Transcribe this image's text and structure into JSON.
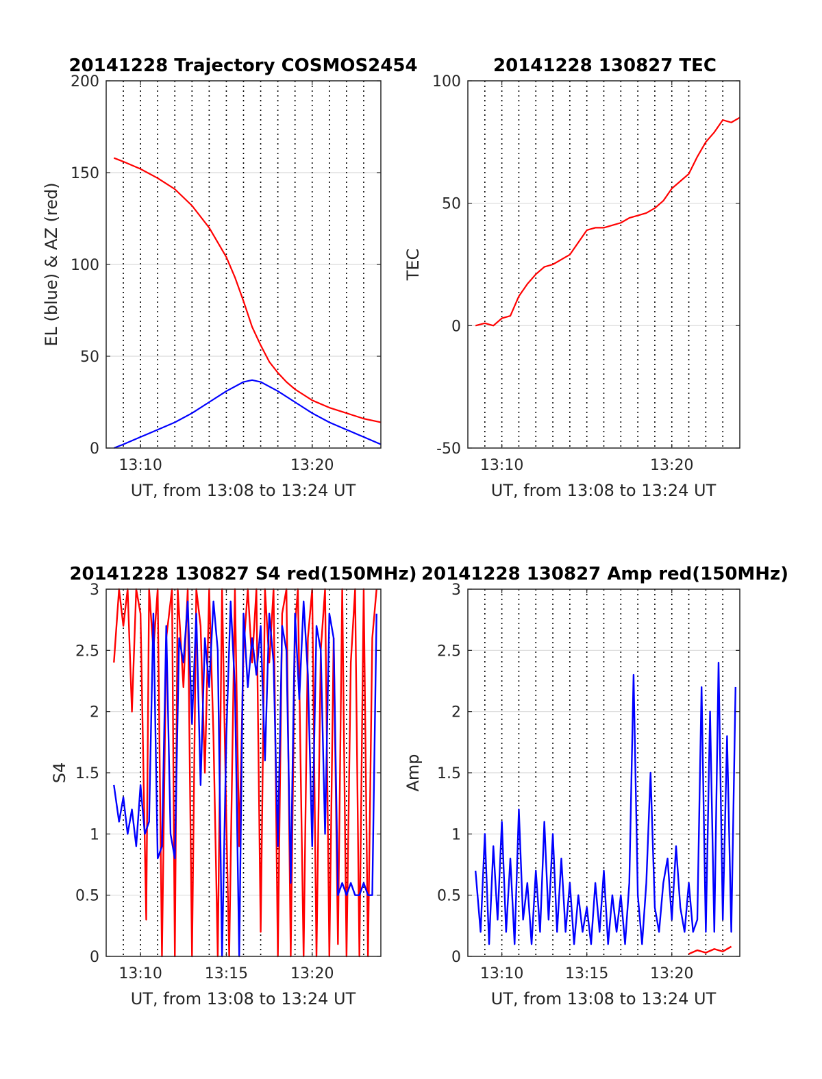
{
  "figure": {
    "colors": {
      "elevation": "#0000ff",
      "azimuth": "#ff0000",
      "red_channel": "#ff0000",
      "blue_channel": "#0000ff",
      "grid": "#d9d9d9",
      "dotted_marker": "#000000"
    }
  },
  "chart_data": [
    {
      "id": "trajectory",
      "type": "line",
      "title": "20141228 Trajectory COSMOS2454",
      "xlabel": "UT, from 13:08 to 13:24 UT",
      "ylabel": "EL (blue) & AZ (red)",
      "xlim": [
        "13:08:00",
        "13:24:00"
      ],
      "ylim": [
        0,
        200
      ],
      "yticks": [
        0,
        50,
        100,
        150,
        200
      ],
      "xticks": [
        "13:10",
        "13:20"
      ],
      "grid": "horizontal",
      "vertical_dotted_lines": [
        "13:09:00",
        "13:10:00",
        "13:11:00",
        "13:12:00",
        "13:13:00",
        "13:14:00",
        "13:15:00",
        "13:16:00",
        "13:17:00",
        "13:18:00",
        "13:19:00",
        "13:20:00",
        "13:21:00",
        "13:22:00",
        "13:23:00"
      ],
      "series": [
        {
          "color": "#ff0000",
          "x": [
            "13:08:27",
            "13:09:00",
            "13:10:00",
            "13:11:00",
            "13:12:00",
            "13:13:00",
            "13:14:00",
            "13:15:00",
            "13:15:30",
            "13:16:00",
            "13:16:30",
            "13:17:00",
            "13:17:30",
            "13:18:00",
            "13:18:30",
            "13:19:00",
            "13:20:00",
            "13:21:00",
            "13:22:00",
            "13:23:00",
            "13:24:00"
          ],
          "values": [
            158,
            156,
            152,
            147,
            141,
            132,
            120,
            104,
            93,
            80,
            66,
            56,
            47,
            41,
            36,
            32,
            26,
            22,
            19,
            16,
            14
          ]
        },
        {
          "color": "#0000ff",
          "x": [
            "13:08:27",
            "13:09:00",
            "13:10:00",
            "13:11:00",
            "13:12:00",
            "13:13:00",
            "13:14:00",
            "13:15:00",
            "13:16:00",
            "13:16:30",
            "13:17:00",
            "13:18:00",
            "13:19:00",
            "13:20:00",
            "13:21:00",
            "13:22:00",
            "13:23:00",
            "13:24:00"
          ],
          "values": [
            0,
            2,
            6,
            10,
            14,
            19,
            25,
            31,
            36,
            37,
            36,
            31,
            25,
            19,
            14,
            10,
            6,
            2
          ]
        }
      ]
    },
    {
      "id": "tec",
      "type": "line",
      "title": "20141228 130827 TEC",
      "xlabel": "UT, from 13:08 to 13:24 UT",
      "ylabel": "TEC",
      "xlim": [
        "13:08:00",
        "13:24:00"
      ],
      "ylim": [
        -50,
        100
      ],
      "yticks": [
        -50,
        0,
        50,
        100
      ],
      "xticks": [
        "13:10",
        "13:20"
      ],
      "grid": "horizontal",
      "vertical_dotted_lines": [
        "13:09:00",
        "13:10:00",
        "13:11:00",
        "13:12:00",
        "13:13:00",
        "13:14:00",
        "13:15:00",
        "13:16:00",
        "13:17:00",
        "13:18:00",
        "13:19:00",
        "13:20:00",
        "13:21:00",
        "13:22:00",
        "13:23:00"
      ],
      "series": [
        {
          "color": "#ff0000",
          "x": [
            "13:08:27",
            "13:09:00",
            "13:09:30",
            "13:10:00",
            "13:10:30",
            "13:11:00",
            "13:11:30",
            "13:12:00",
            "13:12:30",
            "13:13:00",
            "13:13:30",
            "13:14:00",
            "13:14:30",
            "13:15:00",
            "13:15:30",
            "13:16:00",
            "13:16:30",
            "13:17:00",
            "13:17:30",
            "13:18:00",
            "13:18:30",
            "13:19:00",
            "13:19:30",
            "13:20:00",
            "13:20:30",
            "13:21:00",
            "13:21:30",
            "13:22:00",
            "13:22:30",
            "13:23:00",
            "13:23:30",
            "13:24:00"
          ],
          "values": [
            0,
            1,
            0,
            3,
            4,
            12,
            17,
            21,
            24,
            25,
            27,
            29,
            34,
            39,
            40,
            40,
            41,
            42,
            44,
            45,
            46,
            48,
            51,
            56,
            59,
            62,
            69,
            75,
            79,
            84,
            83,
            85
          ]
        }
      ]
    },
    {
      "id": "s4",
      "type": "line",
      "title": "20141228 130827 S4 red(150MHz)",
      "xlabel": "UT, from 13:08 to 13:24 UT",
      "ylabel": "S4",
      "xlim": [
        "13:08:00",
        "13:24:00"
      ],
      "ylim": [
        0,
        3
      ],
      "yticks": [
        0,
        0.5,
        1,
        1.5,
        2,
        2.5,
        3
      ],
      "xticks": [
        "13:10",
        "13:15",
        "13:20"
      ],
      "grid": "horizontal",
      "vertical_dotted_lines": [
        "13:09:00",
        "13:10:00",
        "13:11:00",
        "13:12:00",
        "13:13:00",
        "13:14:00",
        "13:15:00",
        "13:16:00",
        "13:17:00",
        "13:18:00",
        "13:19:00",
        "13:20:00",
        "13:21:00",
        "13:22:00",
        "13:23:00"
      ],
      "series": [
        {
          "color": "#ff0000",
          "x": [
            "13:08:27",
            "13:08:45",
            "13:09:00",
            "13:09:15",
            "13:09:30",
            "13:09:45",
            "13:10:00",
            "13:10:20",
            "13:10:30",
            "13:10:45",
            "13:11:00",
            "13:11:15",
            "13:11:30",
            "13:11:50",
            "13:12:00",
            "13:12:10",
            "13:12:30",
            "13:12:45",
            "13:13:00",
            "13:13:15",
            "13:13:30",
            "13:13:45",
            "13:14:00",
            "13:14:15",
            "13:14:30",
            "13:14:45",
            "13:15:00",
            "13:15:10",
            "13:15:30",
            "13:15:45",
            "13:16:00",
            "13:16:15",
            "13:16:30",
            "13:16:45",
            "13:17:00",
            "13:17:15",
            "13:17:30",
            "13:17:45",
            "13:18:00",
            "13:18:15",
            "13:18:30",
            "13:18:45",
            "13:19:00",
            "13:19:10",
            "13:19:30",
            "13:19:45",
            "13:20:00",
            "13:20:15",
            "13:20:30",
            "13:20:45",
            "13:21:00",
            "13:21:15",
            "13:21:30",
            "13:21:45",
            "13:22:00",
            "13:22:15",
            "13:22:30",
            "13:22:45",
            "13:23:00",
            "13:23:15",
            "13:23:30",
            "13:23:45"
          ],
          "values": [
            2.4,
            3.0,
            2.7,
            3.0,
            2.0,
            3.0,
            2.8,
            0.3,
            3.0,
            2.5,
            3.0,
            0.0,
            2.6,
            3.0,
            0.0,
            3.0,
            2.2,
            3.0,
            0.0,
            3.0,
            2.7,
            1.5,
            3.0,
            1.8,
            0.0,
            3.0,
            1.1,
            0.0,
            3.0,
            0.9,
            2.5,
            3.0,
            2.4,
            3.0,
            0.2,
            3.0,
            2.4,
            3.0,
            0.0,
            2.8,
            3.0,
            0.0,
            2.7,
            3.0,
            0.0,
            2.6,
            3.0,
            0.0,
            2.5,
            3.0,
            0.0,
            2.6,
            0.1,
            3.0,
            0.0,
            2.4,
            3.0,
            0.0,
            3.0,
            0.0,
            2.6,
            3.0
          ]
        },
        {
          "color": "#0000ff",
          "x": [
            "13:08:27",
            "13:08:45",
            "13:09:00",
            "13:09:15",
            "13:09:30",
            "13:09:45",
            "13:10:00",
            "13:10:15",
            "13:10:30",
            "13:10:45",
            "13:11:00",
            "13:11:15",
            "13:11:30",
            "13:11:45",
            "13:12:00",
            "13:12:15",
            "13:12:30",
            "13:12:45",
            "13:13:00",
            "13:13:15",
            "13:13:30",
            "13:13:45",
            "13:14:00",
            "13:14:15",
            "13:14:30",
            "13:14:45",
            "13:15:00",
            "13:15:15",
            "13:15:30",
            "13:15:45",
            "13:16:00",
            "13:16:15",
            "13:16:30",
            "13:16:45",
            "13:17:00",
            "13:17:15",
            "13:17:30",
            "13:17:45",
            "13:18:00",
            "13:18:15",
            "13:18:30",
            "13:18:45",
            "13:19:00",
            "13:19:15",
            "13:19:30",
            "13:19:45",
            "13:20:00",
            "13:20:15",
            "13:20:30",
            "13:20:45",
            "13:21:00",
            "13:21:15",
            "13:21:30",
            "13:21:45",
            "13:22:00",
            "13:22:15",
            "13:22:30",
            "13:22:45",
            "13:23:00",
            "13:23:15",
            "13:23:30",
            "13:23:45"
          ],
          "values": [
            1.4,
            1.1,
            1.3,
            1.0,
            1.2,
            0.9,
            1.4,
            1.0,
            1.1,
            2.8,
            0.8,
            0.9,
            2.7,
            1.0,
            0.8,
            2.6,
            2.4,
            2.9,
            1.9,
            2.8,
            1.4,
            2.6,
            2.2,
            2.9,
            2.5,
            0.0,
            1.8,
            2.9,
            2.2,
            0.0,
            2.8,
            2.2,
            2.6,
            2.3,
            2.7,
            1.6,
            2.8,
            2.4,
            0.9,
            2.7,
            2.5,
            0.6,
            2.8,
            2.1,
            2.9,
            2.3,
            0.9,
            2.7,
            2.5,
            1.0,
            2.8,
            2.6,
            0.5,
            0.6,
            0.5,
            0.6,
            0.5,
            0.5,
            0.6,
            0.5,
            0.5,
            2.8
          ]
        }
      ]
    },
    {
      "id": "amp",
      "type": "line",
      "title": "20141228 130827 Amp red(150MHz)",
      "xlabel": "UT, from 13:08 to 13:24 UT",
      "ylabel": "Amp",
      "xlim": [
        "13:08:00",
        "13:24:00"
      ],
      "ylim": [
        0,
        3
      ],
      "yticks": [
        0,
        0.5,
        1,
        1.5,
        2,
        2.5,
        3
      ],
      "xticks": [
        "13:10",
        "13:15",
        "13:20"
      ],
      "grid": "horizontal",
      "vertical_dotted_lines": [
        "13:09:00",
        "13:10:00",
        "13:11:00",
        "13:12:00",
        "13:13:00",
        "13:14:00",
        "13:15:00",
        "13:16:00",
        "13:17:00",
        "13:18:00",
        "13:19:00",
        "13:20:00",
        "13:21:00",
        "13:22:00",
        "13:23:00"
      ],
      "series": [
        {
          "color": "#0000ff",
          "x": [
            "13:08:27",
            "13:08:45",
            "13:09:00",
            "13:09:15",
            "13:09:30",
            "13:09:45",
            "13:10:00",
            "13:10:15",
            "13:10:30",
            "13:10:45",
            "13:11:00",
            "13:11:15",
            "13:11:30",
            "13:11:45",
            "13:12:00",
            "13:12:15",
            "13:12:30",
            "13:12:45",
            "13:13:00",
            "13:13:15",
            "13:13:30",
            "13:13:45",
            "13:14:00",
            "13:14:15",
            "13:14:30",
            "13:14:45",
            "13:15:00",
            "13:15:15",
            "13:15:30",
            "13:15:45",
            "13:16:00",
            "13:16:15",
            "13:16:30",
            "13:16:45",
            "13:17:00",
            "13:17:15",
            "13:17:30",
            "13:17:45",
            "13:18:00",
            "13:18:15",
            "13:18:30",
            "13:18:45",
            "13:19:00",
            "13:19:15",
            "13:19:30",
            "13:19:45",
            "13:20:00",
            "13:20:15",
            "13:20:30",
            "13:20:45",
            "13:21:00",
            "13:21:15",
            "13:21:30",
            "13:21:45",
            "13:22:00",
            "13:22:15",
            "13:22:30",
            "13:22:45",
            "13:23:00",
            "13:23:15",
            "13:23:30",
            "13:23:45"
          ],
          "values": [
            0.7,
            0.2,
            1.0,
            0.1,
            0.9,
            0.3,
            1.1,
            0.2,
            0.8,
            0.1,
            1.2,
            0.3,
            0.6,
            0.1,
            0.7,
            0.2,
            1.1,
            0.3,
            1.0,
            0.2,
            0.8,
            0.2,
            0.6,
            0.1,
            0.5,
            0.2,
            0.4,
            0.1,
            0.6,
            0.2,
            0.7,
            0.1,
            0.5,
            0.2,
            0.5,
            0.1,
            0.6,
            2.3,
            0.5,
            0.1,
            0.6,
            1.5,
            0.4,
            0.2,
            0.6,
            0.8,
            0.3,
            0.9,
            0.4,
            0.2,
            0.6,
            0.2,
            0.3,
            2.2,
            0.2,
            2.0,
            0.2,
            2.4,
            0.3,
            1.8,
            0.2,
            2.2
          ]
        },
        {
          "color": "#ff0000",
          "x": [
            "13:21:00",
            "13:21:30",
            "13:22:00",
            "13:22:30",
            "13:23:00",
            "13:23:30"
          ],
          "values": [
            0.02,
            0.05,
            0.03,
            0.06,
            0.04,
            0.08
          ]
        }
      ]
    }
  ]
}
